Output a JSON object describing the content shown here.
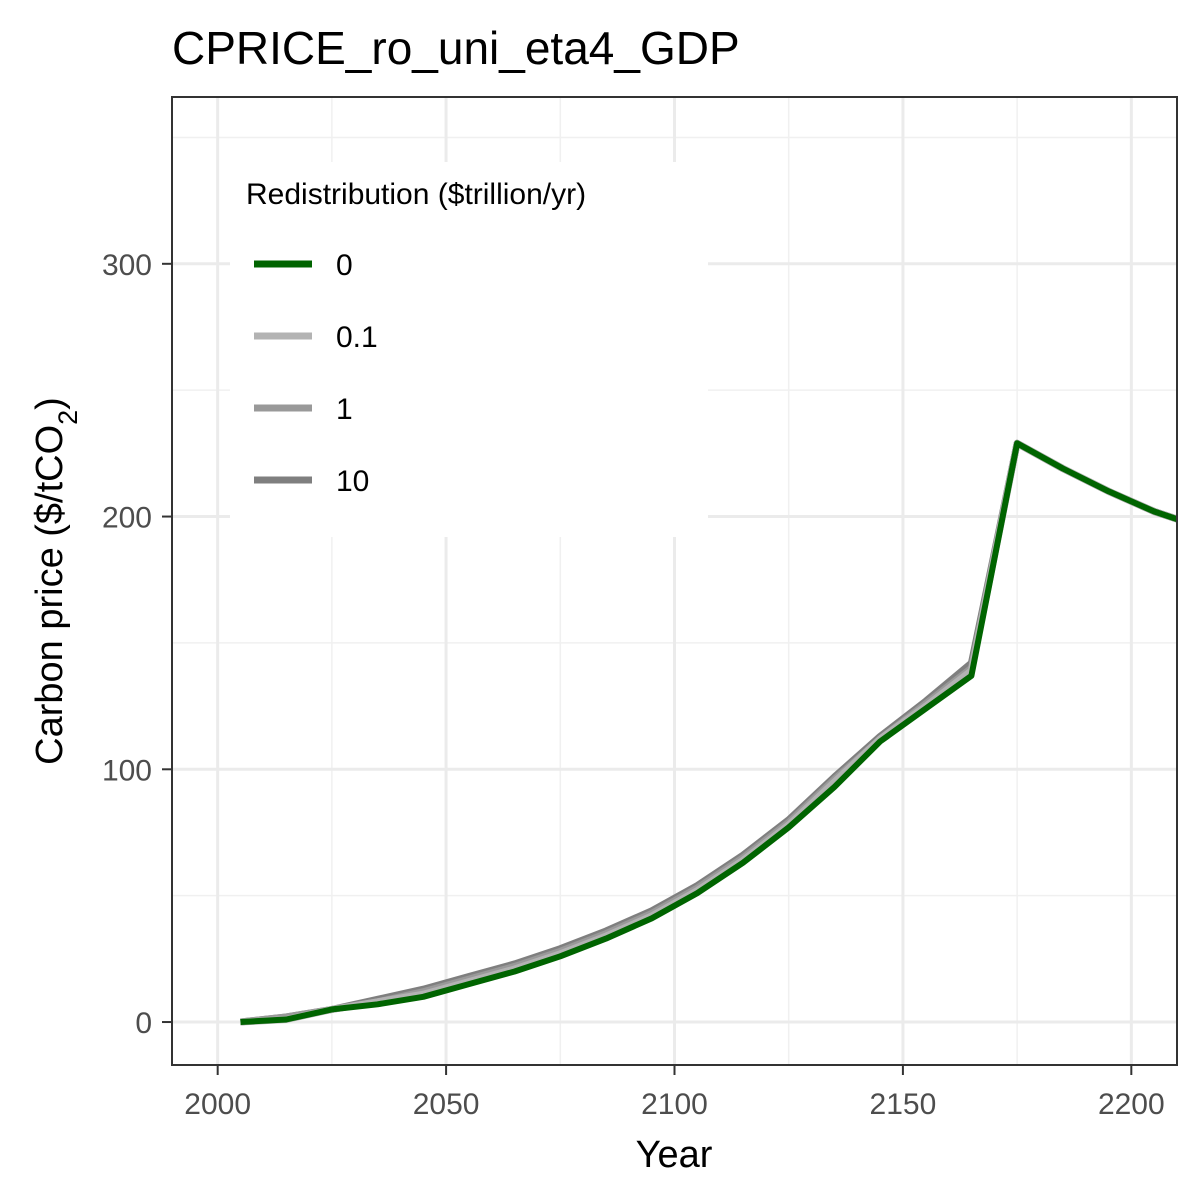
{
  "chart_data": {
    "type": "line",
    "title": "CPRICE_ro_uni_eta4_GDP",
    "xlabel": "Year",
    "ylabel_main": "Carbon price ($/tCO",
    "ylabel_sub": "2",
    "ylabel_tail": ")",
    "xlim": [
      1990,
      2210
    ],
    "ylim": [
      -17,
      366
    ],
    "x_ticks": [
      2000,
      2050,
      2100,
      2150,
      2200
    ],
    "y_ticks": [
      0,
      100,
      200,
      300
    ],
    "x_tick_labels": [
      "2000",
      "2050",
      "2100",
      "2150",
      "2200"
    ],
    "y_tick_labels": [
      "0",
      "100",
      "200",
      "300"
    ],
    "grid": true,
    "legend": {
      "title": "Redistribution ($trillion/yr)",
      "position": "top-left"
    },
    "series": [
      {
        "name": "10",
        "color": "#7f7f7f",
        "x": [
          2005,
          2015,
          2025,
          2035,
          2045,
          2055,
          2065,
          2075,
          2085,
          2095,
          2105,
          2115,
          2125,
          2135,
          2145,
          2155,
          2165,
          2175,
          2185,
          2195,
          2205,
          2210
        ],
        "y": [
          0,
          2,
          5,
          9,
          13,
          18,
          23,
          29,
          36,
          44,
          54,
          66,
          80,
          97,
          113,
          127,
          142,
          229,
          219,
          210,
          202,
          199
        ]
      },
      {
        "name": "1",
        "color": "#999999",
        "x": [
          2005,
          2015,
          2025,
          2035,
          2045,
          2055,
          2065,
          2075,
          2085,
          2095,
          2105,
          2115,
          2125,
          2135,
          2145,
          2155,
          2165,
          2175,
          2185,
          2195,
          2205,
          2210
        ],
        "y": [
          0,
          2,
          5,
          8,
          12,
          17,
          22,
          28,
          35,
          43,
          53,
          65,
          79,
          96,
          112,
          126,
          140,
          229,
          219,
          210,
          202,
          199
        ]
      },
      {
        "name": "0.1",
        "color": "#b3b3b3",
        "x": [
          2005,
          2015,
          2025,
          2035,
          2045,
          2055,
          2065,
          2075,
          2085,
          2095,
          2105,
          2115,
          2125,
          2135,
          2145,
          2155,
          2165,
          2175,
          2185,
          2195,
          2205,
          2210
        ],
        "y": [
          0,
          1,
          5,
          8,
          11,
          16,
          21,
          27,
          34,
          42,
          52,
          64,
          78,
          95,
          112,
          125,
          139,
          229,
          219,
          210,
          202,
          199
        ]
      },
      {
        "name": "0",
        "color": "#006400",
        "x": [
          2005,
          2015,
          2025,
          2035,
          2045,
          2055,
          2065,
          2075,
          2085,
          2095,
          2105,
          2115,
          2125,
          2135,
          2145,
          2155,
          2165,
          2175,
          2185,
          2195,
          2205,
          2210
        ],
        "y": [
          0,
          1,
          5,
          7,
          10,
          15,
          20,
          26,
          33,
          41,
          51,
          63,
          77,
          93,
          111,
          124,
          137,
          229,
          219,
          210,
          202,
          199
        ]
      }
    ],
    "legend_order": [
      "0",
      "0.1",
      "1",
      "10"
    ]
  }
}
